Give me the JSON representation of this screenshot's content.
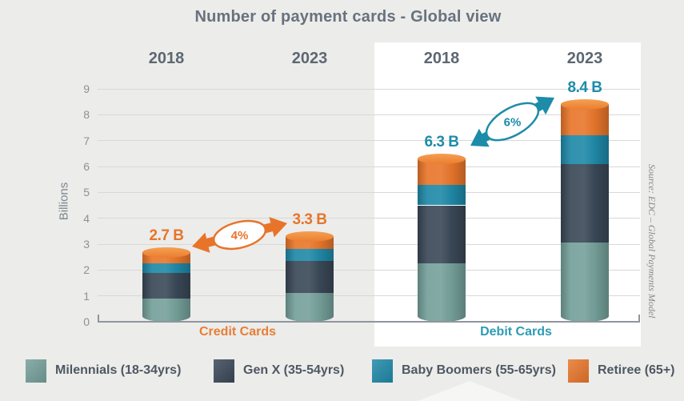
{
  "title": "Number of payment cards - Global view",
  "y_axis": {
    "label": "Billions",
    "ticks": [
      0,
      1,
      2,
      3,
      4,
      5,
      6,
      7,
      8,
      9
    ],
    "max": 9
  },
  "source_note": "Source: EDC – Global Payments Model",
  "groups": [
    {
      "label": "Credit Cards",
      "label_color": "#E87E35"
    },
    {
      "label": "Debit Cards",
      "label_color": "#2E9BB5"
    }
  ],
  "legend": [
    {
      "label": "Milennials (18-34yrs)",
      "color": "#75A09A"
    },
    {
      "label": "Gen X (35-54yrs)",
      "color": "#3A4857"
    },
    {
      "label": "Baby Boomers (55-65yrs)",
      "color": "#1F89A8"
    },
    {
      "label": "Retiree (65+)",
      "color": "#E8762B"
    }
  ],
  "chart_data": {
    "type": "bar",
    "stacked": true,
    "title": "Number of payment cards - Global view",
    "ylabel": "Billions",
    "ylim": [
      0,
      9
    ],
    "grid": true,
    "columns": [
      {
        "group": "Credit Cards",
        "year": "2018",
        "total": 2.7,
        "total_label": "2.7 B",
        "label_color": "#E8742A"
      },
      {
        "group": "Credit Cards",
        "year": "2023",
        "total": 3.3,
        "total_label": "3.3 B",
        "label_color": "#E8742A"
      },
      {
        "group": "Debit Cards",
        "year": "2018",
        "total": 6.3,
        "total_label": "6.3 B",
        "label_color": "#1D8CA8"
      },
      {
        "group": "Debit Cards",
        "year": "2023",
        "total": 8.4,
        "total_label": "8.4 B",
        "label_color": "#1D8CA8"
      }
    ],
    "series": [
      {
        "name": "Milennials (18-34yrs)",
        "color": "#75A09A",
        "values": [
          0.9,
          1.1,
          2.25,
          3.05
        ]
      },
      {
        "name": "Gen X (35-54yrs)",
        "color": "#3A4857",
        "values": [
          1.0,
          1.25,
          2.25,
          3.05
        ]
      },
      {
        "name": "Baby Boomers (55-65yrs)",
        "color": "#1F89A8",
        "values": [
          0.35,
          0.45,
          0.8,
          1.1
        ]
      },
      {
        "name": "Retiree (65+)",
        "color": "#E8762B",
        "cap_color_light": "#F5A055",
        "cap_color_dark": "#EB7D2D",
        "values": [
          0.45,
          0.5,
          1.0,
          1.2
        ]
      }
    ],
    "annotations": [
      {
        "label": "4%",
        "color": "#E8742A",
        "between": [
          "Credit Cards 2018",
          "Credit Cards 2023"
        ]
      },
      {
        "label": "6%",
        "color": "#1D8CA8",
        "between": [
          "Debit Cards 2018",
          "Debit Cards 2023"
        ]
      }
    ],
    "legend_position": "bottom"
  }
}
